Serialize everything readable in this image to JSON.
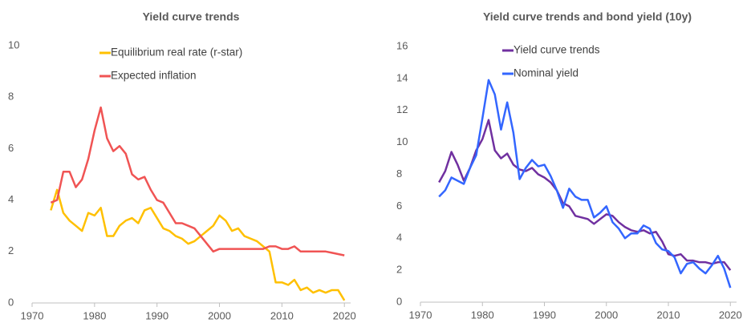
{
  "chart_data": [
    {
      "type": "line",
      "title": "Yield curve trends",
      "x": [
        1973,
        1974,
        1975,
        1976,
        1977,
        1978,
        1979,
        1980,
        1981,
        1982,
        1983,
        1984,
        1985,
        1986,
        1987,
        1988,
        1989,
        1990,
        1991,
        1992,
        1993,
        1994,
        1995,
        1996,
        1997,
        1998,
        1999,
        2000,
        2001,
        2002,
        2003,
        2004,
        2005,
        2006,
        2007,
        2008,
        2009,
        2010,
        2011,
        2012,
        2013,
        2014,
        2015,
        2016,
        2017,
        2018,
        2019,
        2020
      ],
      "series": [
        {
          "name": "Equilibrium real rate (r-star)",
          "color": "#ffc000",
          "values": [
            3.6,
            4.4,
            3.5,
            3.2,
            3.0,
            2.8,
            3.5,
            3.4,
            3.7,
            2.6,
            2.6,
            3.0,
            3.2,
            3.3,
            3.1,
            3.6,
            3.7,
            3.3,
            2.9,
            2.8,
            2.6,
            2.5,
            2.3,
            2.4,
            2.6,
            2.8,
            3.0,
            3.4,
            3.2,
            2.8,
            2.9,
            2.6,
            2.5,
            2.4,
            2.2,
            2.0,
            0.8,
            0.8,
            0.7,
            0.9,
            0.5,
            0.6,
            0.4,
            0.5,
            0.4,
            0.5,
            0.5,
            0.1
          ]
        },
        {
          "name": "Expected inflation",
          "color": "#f05454",
          "values": [
            3.9,
            4.0,
            5.1,
            5.1,
            4.5,
            4.8,
            5.6,
            6.7,
            7.6,
            6.4,
            5.9,
            6.1,
            5.8,
            5.0,
            4.8,
            4.9,
            4.4,
            4.0,
            3.9,
            3.5,
            3.1,
            3.1,
            3.0,
            2.9,
            2.6,
            2.3,
            2.0,
            2.1,
            2.1,
            2.1,
            2.1,
            2.1,
            2.1,
            2.1,
            2.1,
            2.2,
            2.2,
            2.1,
            2.1,
            2.2,
            2.0,
            2.0,
            2.0,
            2.0,
            2.0,
            1.95,
            1.9,
            1.85
          ]
        }
      ],
      "xlim": [
        1970,
        2021
      ],
      "xticks": [
        1970,
        1980,
        1990,
        2000,
        2010,
        2020
      ],
      "ylim": [
        0,
        10
      ],
      "yticks": [
        0,
        2,
        4,
        6,
        8,
        10
      ],
      "grid": false,
      "legend": "upper center"
    },
    {
      "type": "line",
      "title": "Yield curve trends and bond yield (10y)",
      "x": [
        1973,
        1974,
        1975,
        1976,
        1977,
        1978,
        1979,
        1980,
        1981,
        1982,
        1983,
        1984,
        1985,
        1986,
        1987,
        1988,
        1989,
        1990,
        1991,
        1992,
        1993,
        1994,
        1995,
        1996,
        1997,
        1998,
        1999,
        2000,
        2001,
        2002,
        2003,
        2004,
        2005,
        2006,
        2007,
        2008,
        2009,
        2010,
        2011,
        2012,
        2013,
        2014,
        2015,
        2016,
        2017,
        2018,
        2019,
        2020
      ],
      "series": [
        {
          "name": "Yield curve trends",
          "color": "#7030a0",
          "values": [
            7.5,
            8.2,
            9.4,
            8.6,
            7.6,
            8.4,
            9.5,
            10.2,
            11.4,
            9.5,
            9.0,
            9.3,
            8.6,
            8.3,
            8.2,
            8.4,
            8.0,
            7.8,
            7.5,
            7.0,
            6.2,
            6.0,
            5.4,
            5.3,
            5.2,
            4.9,
            5.2,
            5.5,
            5.4,
            5.0,
            4.7,
            4.5,
            4.4,
            4.5,
            4.3,
            4.4,
            3.8,
            3.0,
            2.9,
            3.0,
            2.6,
            2.6,
            2.5,
            2.5,
            2.4,
            2.5,
            2.5,
            2.0
          ]
        },
        {
          "name": "Nominal yield",
          "color": "#3366ff",
          "values": [
            6.6,
            7.0,
            7.8,
            7.6,
            7.4,
            8.4,
            9.2,
            11.5,
            13.9,
            13.0,
            10.8,
            12.5,
            10.6,
            7.7,
            8.4,
            8.9,
            8.5,
            8.6,
            7.9,
            7.0,
            5.9,
            7.1,
            6.6,
            6.4,
            6.4,
            5.3,
            5.6,
            6.0,
            5.0,
            4.6,
            4.0,
            4.3,
            4.3,
            4.8,
            4.6,
            3.7,
            3.3,
            3.2,
            2.8,
            1.8,
            2.4,
            2.5,
            2.1,
            1.8,
            2.3,
            2.9,
            2.1,
            0.9
          ]
        }
      ],
      "xlim": [
        1970,
        2021
      ],
      "xticks": [
        1970,
        1980,
        1990,
        2000,
        2010,
        2020
      ],
      "ylim": [
        0,
        16
      ],
      "yticks": [
        0,
        2,
        4,
        6,
        8,
        10,
        12,
        14,
        16
      ],
      "grid": false,
      "legend": "upper center"
    }
  ]
}
